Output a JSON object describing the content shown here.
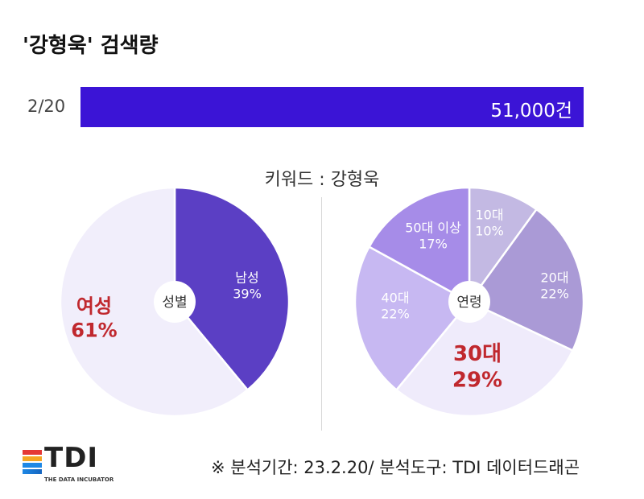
{
  "title": "'강형욱' 검색량",
  "search_bar": {
    "date": "2/20",
    "value": "51,000건"
  },
  "keyword_label": "키워드 : 강형욱",
  "footer_note": "※ 분석기간: 23.2.20/ 분석도구: TDI 데이터드래곤",
  "logo": {
    "text": "TDI",
    "subtitle": "THE DATA INCUBATOR",
    "colors": [
      "#e53935",
      "#f5a623",
      "#1e88e5",
      "#1565c0"
    ]
  },
  "colors": {
    "bar": "#3b14d6",
    "highlight_text": "#c0282e"
  },
  "chart_data": [
    {
      "type": "pie",
      "center_label": "성별",
      "slices": [
        {
          "label": "남성",
          "value": 39,
          "value_text": "39%",
          "color": "#5b3fc4"
        },
        {
          "label": "여성",
          "value": 61,
          "value_text": "61%",
          "color": "#f1eefb",
          "highlight": true
        }
      ]
    },
    {
      "type": "pie",
      "center_label": "연령",
      "slices": [
        {
          "label": "10대",
          "value": 10,
          "value_text": "10%",
          "color": "#c3b9e3"
        },
        {
          "label": "20대",
          "value": 22,
          "value_text": "22%",
          "color": "#aa9ad6"
        },
        {
          "label": "30대",
          "value": 29,
          "value_text": "29%",
          "color": "#efebfb",
          "highlight": true
        },
        {
          "label": "40대",
          "value": 22,
          "value_text": "22%",
          "color": "#c7b8f2"
        },
        {
          "label": "50대 이상",
          "value": 17,
          "value_text": "17%",
          "color": "#a68ce8"
        }
      ]
    }
  ]
}
